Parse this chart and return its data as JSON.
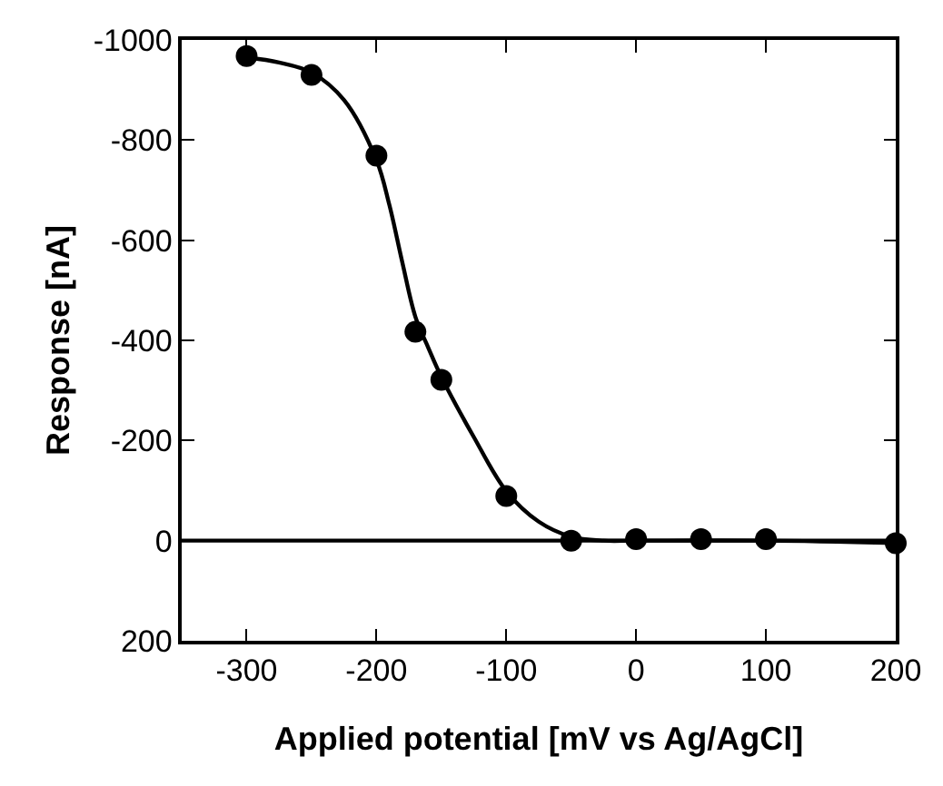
{
  "chart_data": {
    "type": "scatter",
    "xlabel": "Applied potential [mV vs Ag/AgCl]",
    "ylabel": "Response [nA]",
    "xlim": [
      -350,
      200
    ],
    "xticks": [
      -300,
      -200,
      -100,
      0,
      100,
      200
    ],
    "ylim": [
      200,
      -1000
    ],
    "yticks": [
      -1000,
      -800,
      -600,
      -400,
      -200,
      0,
      200
    ],
    "grid": false,
    "marker": "circle",
    "ref_lines": [
      {
        "axis": "y",
        "value": 0,
        "color": "#000000",
        "line_style": "solid"
      }
    ],
    "series": [
      {
        "color": "#000000",
        "x": [
          -300,
          -250,
          -200,
          -170,
          -150,
          -100,
          -50,
          0,
          50,
          100,
          200
        ],
        "values": [
          -968,
          -930,
          -769,
          -417,
          -321,
          -89,
          0,
          -3,
          -3,
          -3,
          5
        ]
      },
      {
        "type": "line",
        "color": "#000000",
        "marker": "none",
        "line_style": "solid",
        "x": [
          -300,
          -275,
          -250,
          -225,
          -200,
          -190,
          -180,
          -170,
          -160,
          -150,
          -125,
          -100,
          -75,
          -50,
          -25,
          0,
          100,
          200
        ],
        "values": [
          -965,
          -955,
          -935,
          -880,
          -760,
          -670,
          -555,
          -447,
          -385,
          -327,
          -207,
          -99,
          -38,
          -8,
          0,
          0,
          0,
          5
        ]
      }
    ]
  }
}
